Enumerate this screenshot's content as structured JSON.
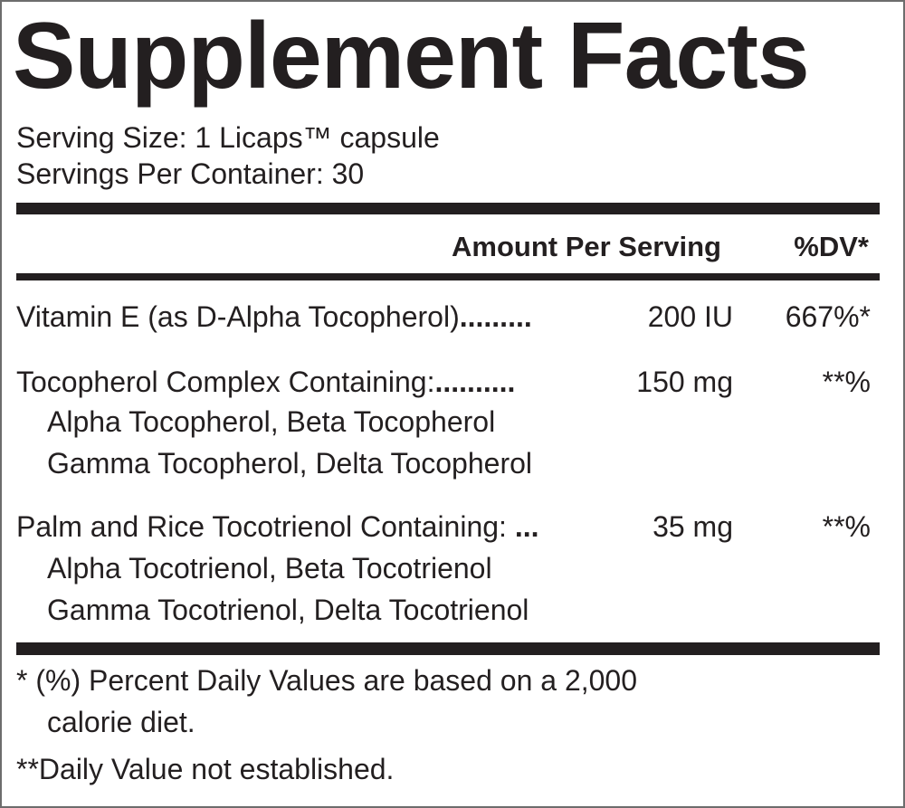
{
  "title": "Supplement Facts",
  "serving_size": "Serving Size:  1 Licaps™ capsule",
  "servings_per_container": "Servings Per Container: 30",
  "header": {
    "amount": "Amount Per Serving",
    "dv": "%DV*"
  },
  "rows": [
    {
      "name": "Vitamin E (as D-Alpha Tocopherol)",
      "leader": ".........",
      "amount": "200 IU",
      "dv": "667%*"
    },
    {
      "name": "Tocopherol Complex Containing:",
      "leader": "..........",
      "amount": "150 mg",
      "dv": "**%",
      "sub": [
        "Alpha Tocopherol, Beta Tocopherol",
        "Gamma Tocopherol, Delta Tocopherol"
      ]
    },
    {
      "name": "Palm and Rice Tocotrienol Containing:",
      "leader": " ...",
      "amount": "35 mg",
      "dv": "**%",
      "sub": [
        "Alpha Tocotrienol, Beta Tocotrienol",
        "Gamma Tocotrienol, Delta Tocotrienol"
      ]
    }
  ],
  "footnotes": {
    "line1": "* (%) Percent Daily Values are based on a 2,000",
    "line2": "calorie diet.",
    "line3": "**Daily Value not established."
  }
}
